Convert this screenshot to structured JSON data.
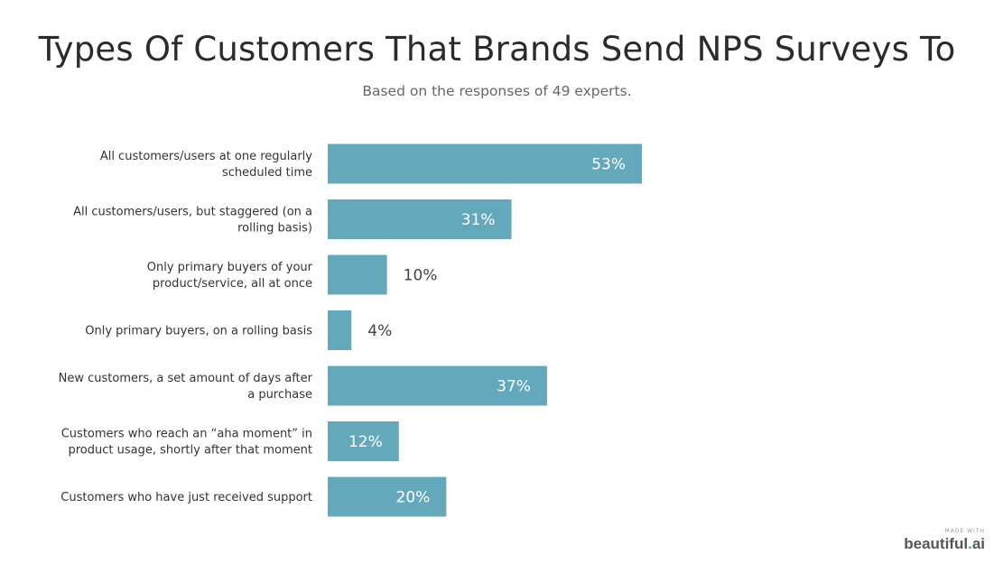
{
  "chart_data": {
    "type": "bar",
    "orientation": "horizontal",
    "title": "Types Of Customers That Brands Send NPS Surveys To",
    "subtitle": "Based on the responses of 49 experts.",
    "categories": [
      [
        "All customers/users at one regularly",
        "scheduled time"
      ],
      [
        "All customers/users, but staggered (on a",
        "rolling basis)"
      ],
      [
        "Only primary buyers of your",
        "product/service, all at once"
      ],
      [
        "Only primary buyers, on a rolling basis"
      ],
      [
        "New customers, a set amount of days after",
        "a purchase"
      ],
      [
        "Customers who reach an “aha moment” in",
        "product usage, shortly after that moment"
      ],
      [
        "Customers who have just received support"
      ]
    ],
    "values": [
      53,
      31,
      10,
      4,
      37,
      12,
      20
    ],
    "value_labels": [
      "53%",
      "31%",
      "10%",
      "4%",
      "37%",
      "12%",
      "20%"
    ],
    "unit": "%",
    "bar_color": "#63a9bb",
    "grid": false,
    "legend": "none"
  },
  "badge": {
    "small_text": "MADE WITH",
    "logo_text": "beautiful",
    "logo_dot": ".",
    "logo_suffix": "ai"
  }
}
